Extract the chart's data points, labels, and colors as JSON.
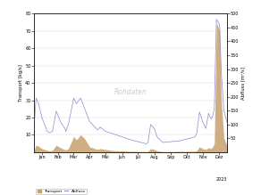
{
  "title_left": "Transport [kg/s]",
  "title_right": "Abfluss [m³/s]",
  "xlabel": "2023",
  "legend_transport": "Transport",
  "legend_abfluss": "Abfluss",
  "watermark": "Rohdaten",
  "ylim_left": [
    0,
    80
  ],
  "ylim_right": [
    0,
    500
  ],
  "yticks_left": [
    10,
    20,
    30,
    40,
    50,
    60,
    70,
    80
  ],
  "yticks_right": [
    50,
    100,
    150,
    200,
    250,
    300,
    350,
    400,
    450,
    500
  ],
  "month_labels": [
    "Jan",
    "Feb",
    "Mar",
    "Apr",
    "Mai",
    "Jun",
    "Jul",
    "Aug",
    "Sep",
    "Okt",
    "Nov",
    "Dez"
  ],
  "transport_color": "#c8a06e",
  "abfluss_color": "#8888cc",
  "background_color": "#ffffff",
  "grid_color": "#dddddd"
}
